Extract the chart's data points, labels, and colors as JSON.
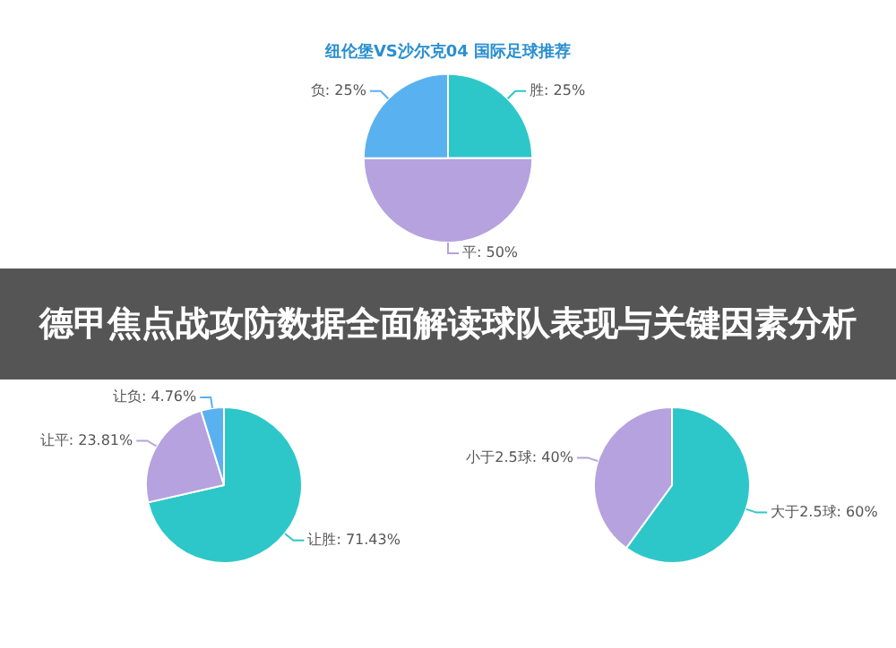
{
  "chart_data": [
    {
      "type": "pie",
      "title": "纽伦堡VS沙尔克04 国际足球推荐",
      "annotations": [
        "德甲焦点战攻防数据全面解读球队表现与关键因素分析"
      ],
      "categories": [
        "胜",
        "平",
        "负"
      ],
      "values": [
        25,
        50,
        25
      ],
      "value_labels": [
        "25%",
        "50%",
        "25%"
      ],
      "colors": [
        "#2ec7c9",
        "#b6a2de",
        "#5ab1ef"
      ],
      "legend": false
    },
    {
      "type": "pie",
      "categories": [
        "让胜",
        "让平",
        "让负"
      ],
      "values": [
        71.43,
        23.81,
        4.76
      ],
      "value_labels": [
        "71.43%",
        "23.81%",
        "4.76%"
      ],
      "colors": [
        "#2ec7c9",
        "#b6a2de",
        "#5ab1ef"
      ],
      "legend": false
    },
    {
      "type": "pie",
      "categories": [
        "大于2.5球",
        "小于2.5球"
      ],
      "values": [
        60,
        40
      ],
      "value_labels": [
        "60%",
        "40%"
      ],
      "colors": [
        "#2ec7c9",
        "#b6a2de"
      ],
      "legend": false
    }
  ]
}
